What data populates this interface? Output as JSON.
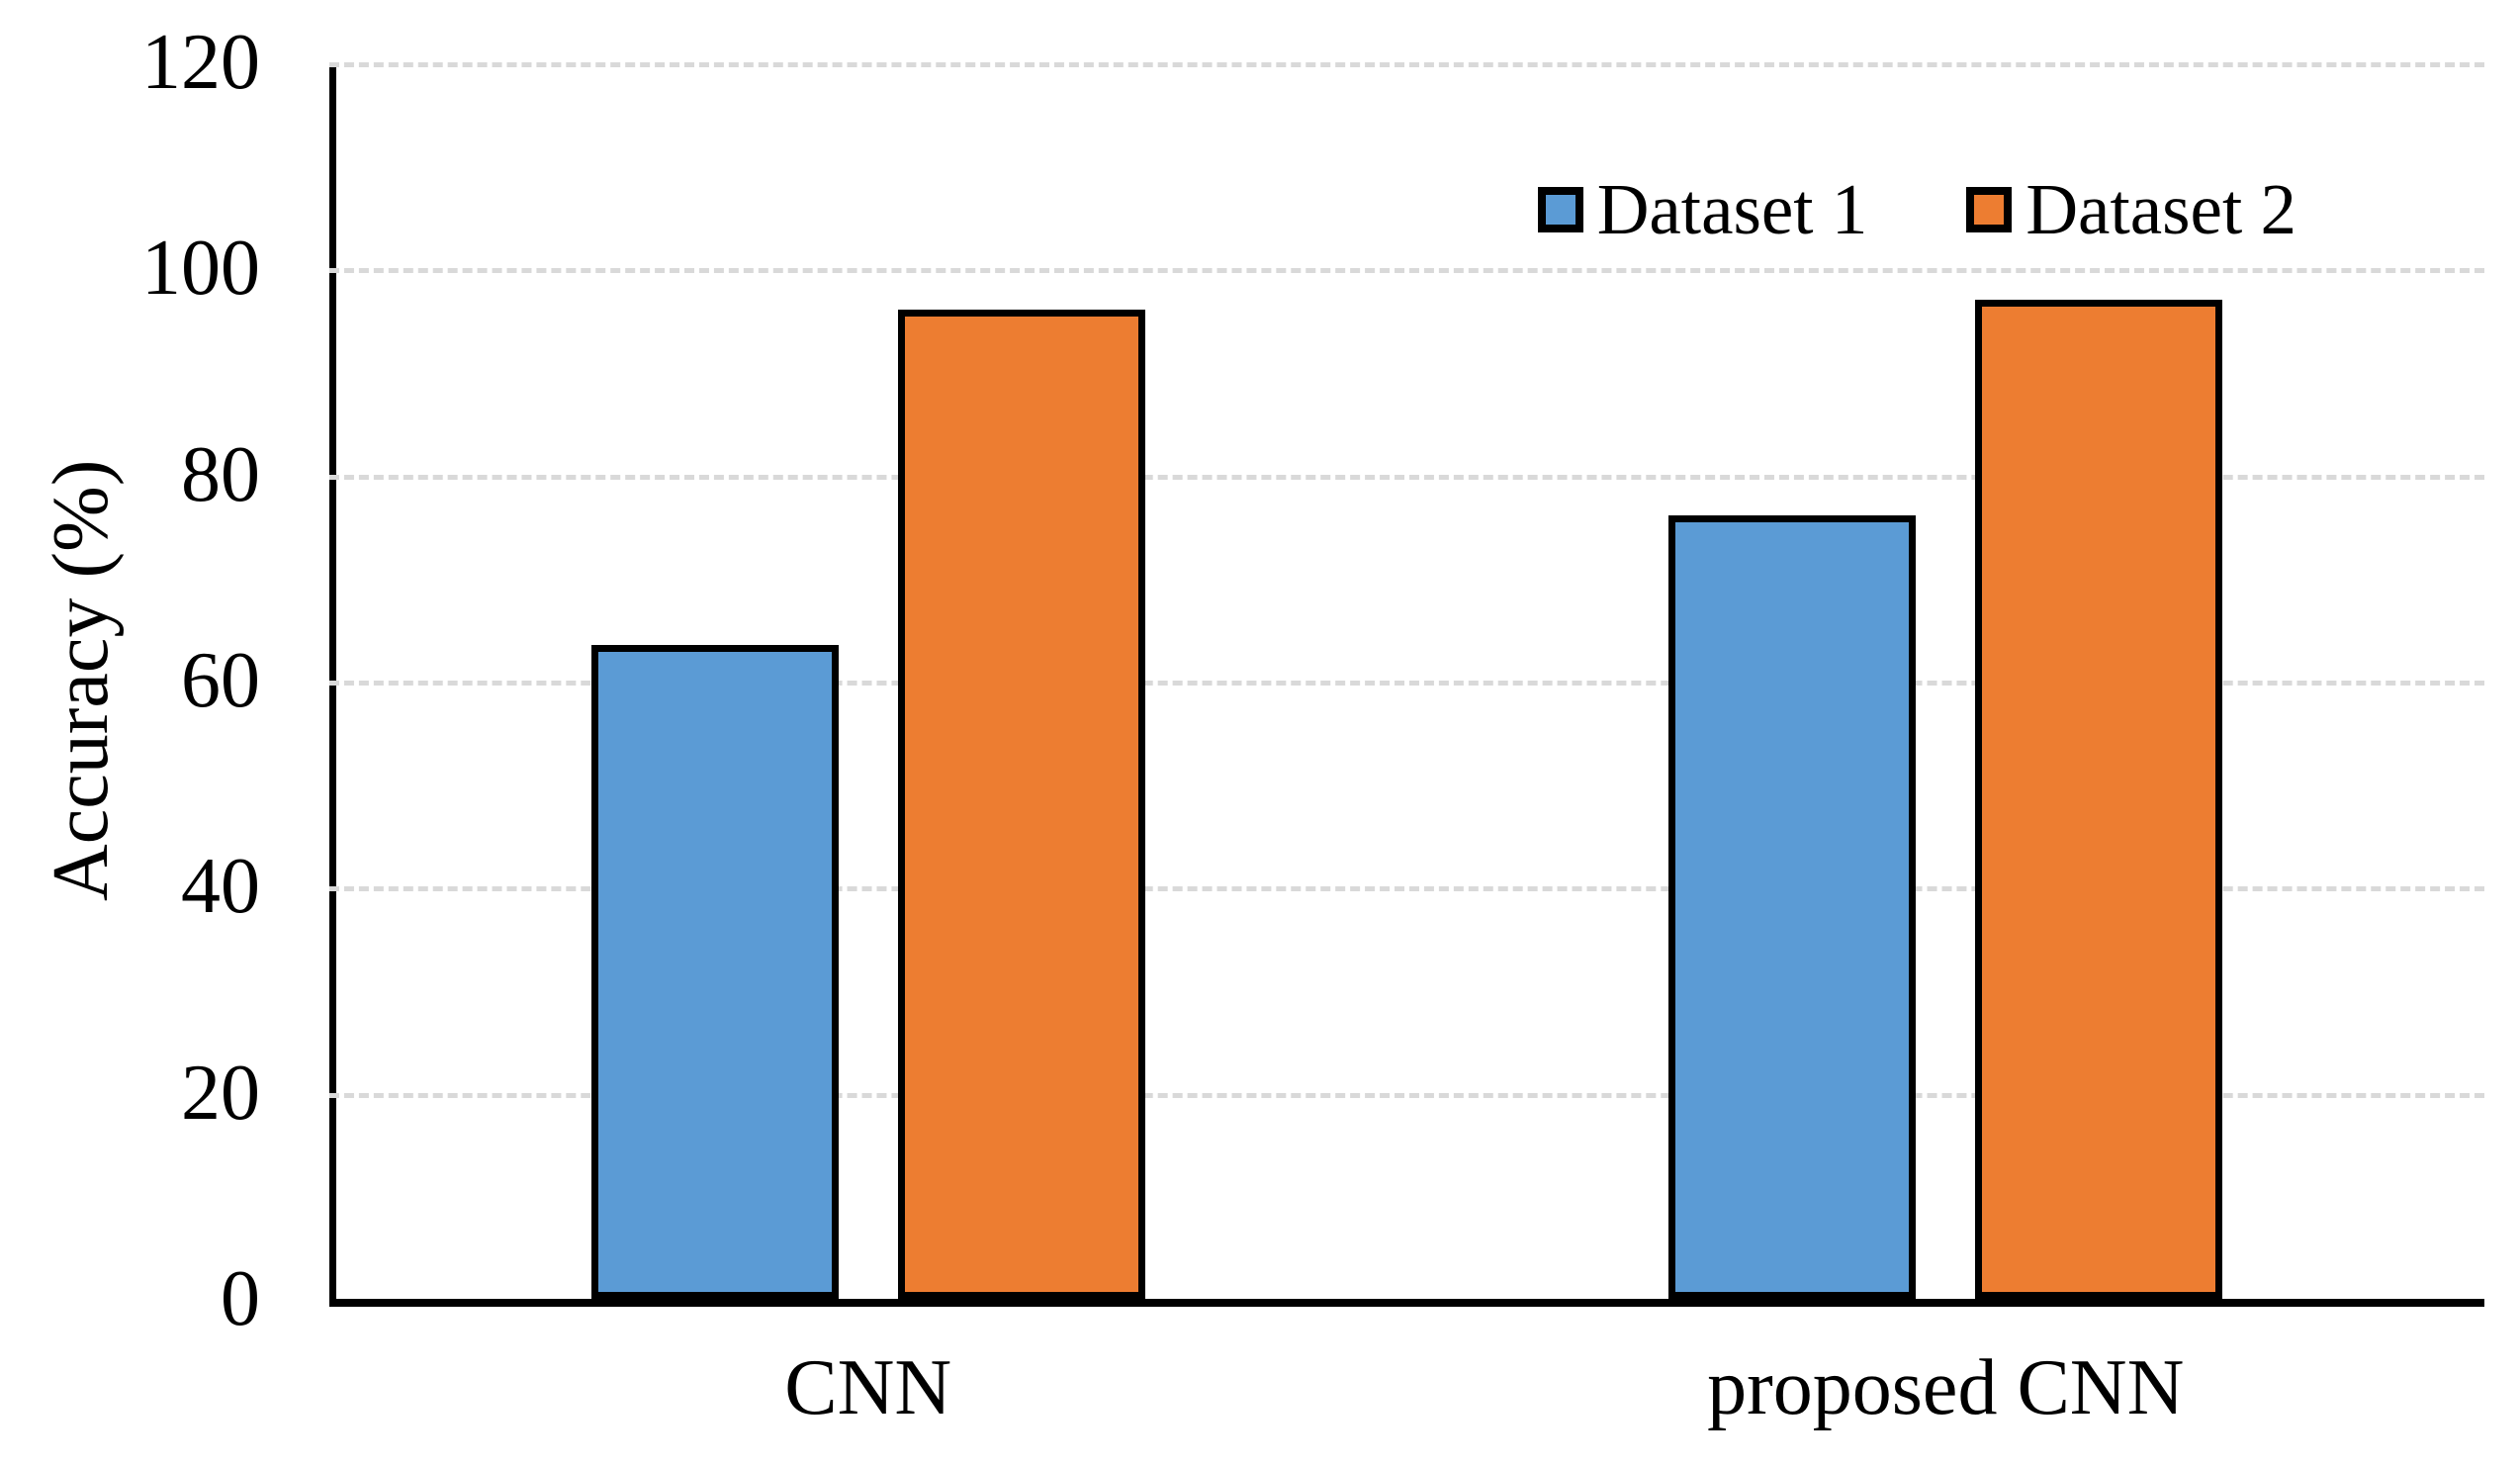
{
  "chart_data": {
    "type": "bar",
    "title": "",
    "categories": [
      "CNN",
      "proposed CNN"
    ],
    "series": [
      {
        "name": "Dataset 1",
        "color": "#5B9BD5",
        "values": [
          63.5,
          76
        ]
      },
      {
        "name": "Dataset 2",
        "color": "#ED7D31",
        "values": [
          96,
          97
        ]
      }
    ],
    "xlabel": "",
    "ylabel": "Accuracy (%)",
    "ylim": [
      0,
      120
    ],
    "yticks": [
      0,
      20,
      40,
      60,
      80,
      100,
      120
    ],
    "grid": "horizontal-dashed",
    "legend_position": "top-right",
    "colors": {
      "bar_border": "#000000",
      "gridline": "#d9d9d9",
      "axis": "#000000",
      "background": "#ffffff"
    }
  }
}
